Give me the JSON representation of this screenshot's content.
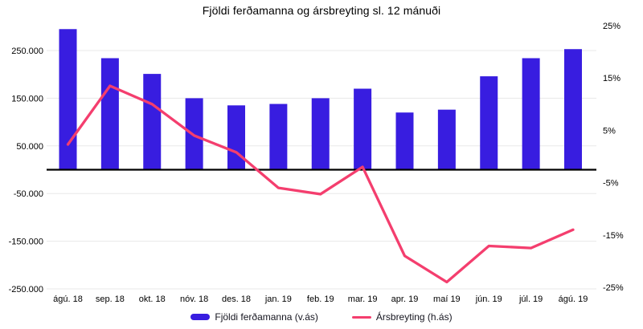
{
  "colors": {
    "bar": "#381DE0",
    "line": "#F43E6E",
    "grid": "#E8E8E8",
    "zero_line": "#000000",
    "text": "#000000"
  },
  "chart_data": {
    "type": "bar+line",
    "title": "Fjöldi ferðamanna og ársbreyting sl. 12 mánuði",
    "categories": [
      "ágú. 18",
      "sep. 18",
      "okt. 18",
      "nóv. 18",
      "des. 18",
      "jan. 19",
      "feb. 19",
      "mar. 19",
      "apr. 19",
      "maí 19",
      "jún. 19",
      "júl. 19",
      "ágú. 19"
    ],
    "series": [
      {
        "name": "Fjöldi ferðamanna (v.ás)",
        "type": "bar",
        "axis": "left",
        "color": "#381DE0",
        "values": [
          295000,
          234000,
          201000,
          150000,
          135000,
          138000,
          150000,
          170000,
          120000,
          126000,
          196000,
          234000,
          253000
        ]
      },
      {
        "name": "Ársbreyting (h.ás)",
        "type": "line",
        "axis": "right",
        "color": "#F43E6E",
        "values": [
          2.3,
          13.5,
          10,
          4,
          0.8,
          -6,
          -7.2,
          -2,
          -19,
          -24,
          -17.1,
          -17.5,
          -14
        ]
      }
    ],
    "left_axis": {
      "tick_labels": [
        "250.000",
        "150.000",
        "50.000",
        "-50.000",
        "-150.000",
        "-250.000"
      ],
      "tick_values": [
        250000,
        150000,
        50000,
        -50000,
        -150000,
        -250000
      ]
    },
    "right_axis": {
      "tick_labels": [
        "25%",
        "15%",
        "5%",
        "-5%",
        "-15%",
        "-25%"
      ],
      "tick_values": [
        25,
        15,
        5,
        -5,
        -15,
        -25
      ]
    },
    "grid": true,
    "legend_position": "bottom"
  }
}
